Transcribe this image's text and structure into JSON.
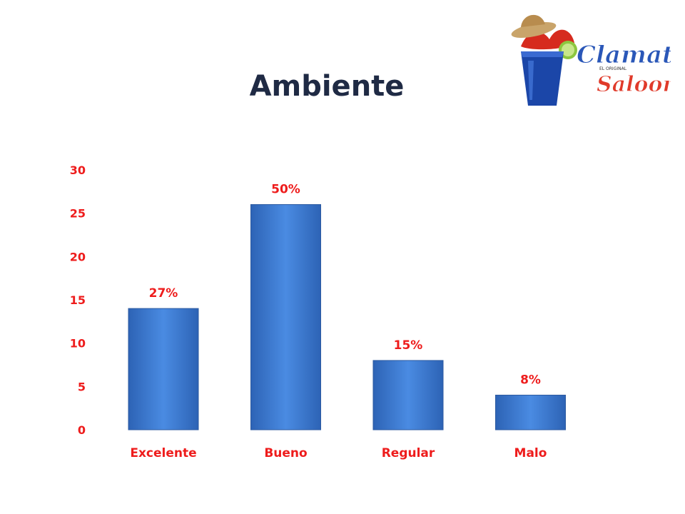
{
  "slide": {
    "title": "Ambiente",
    "logo": {
      "icon": "clamato-cup-hat-logo",
      "line1": "Clamato",
      "line2": "EL ORIGINAL",
      "line3": "Saloon"
    }
  },
  "colors": {
    "title": "#1f2a44",
    "labels": "#ee1c1c",
    "bar": "#3b78cf",
    "bar_edge": "#2c5aa0"
  },
  "chart_data": {
    "type": "bar",
    "title": "Ambiente",
    "categories": [
      "Excelente",
      "Bueno",
      "Regular",
      "Malo"
    ],
    "values": [
      14,
      26,
      8,
      4
    ],
    "data_labels": [
      "27%",
      "50%",
      "15%",
      "8%"
    ],
    "ylim": [
      0,
      30
    ],
    "yticks": [
      0,
      5,
      10,
      15,
      20,
      25,
      30
    ],
    "grid": false,
    "legend": "none",
    "xlabel": "",
    "ylabel": ""
  }
}
